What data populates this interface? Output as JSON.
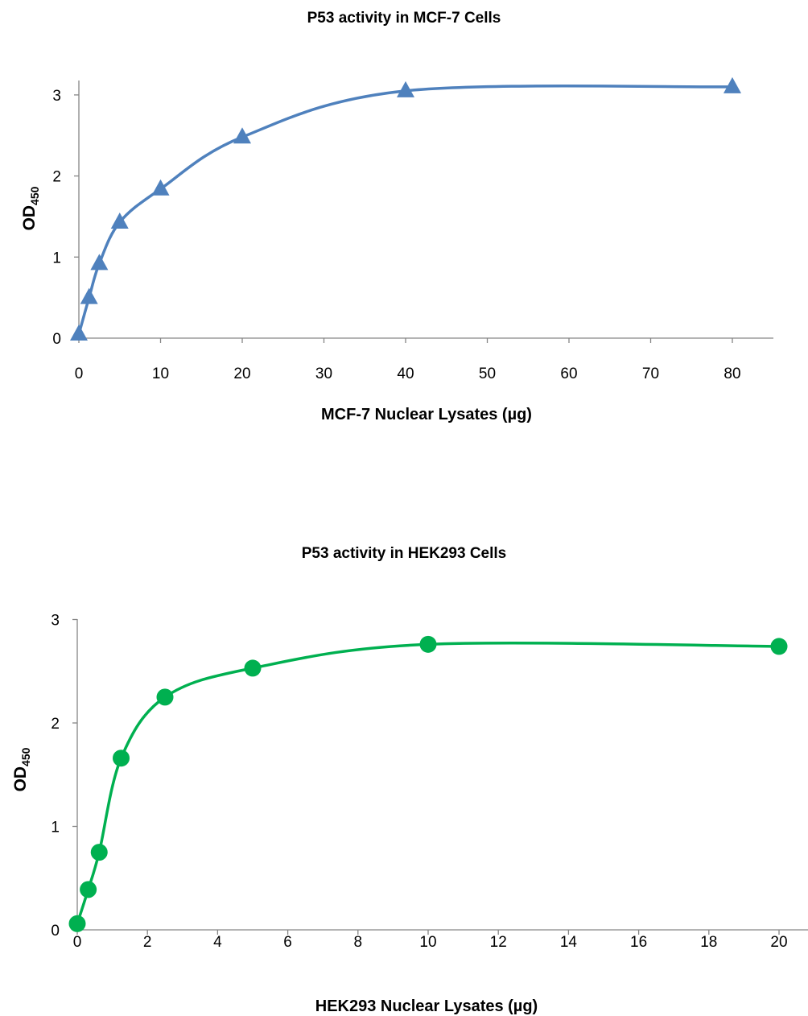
{
  "chart_data": [
    {
      "type": "line",
      "title": "P53 activity in MCF-7 Cells",
      "xlabel": "MCF-7 Nuclear Lysates (µg)",
      "ylabel": "OD",
      "ylabel_subscript": "450",
      "x_ticks": [
        "0",
        "10",
        "20",
        "30",
        "40",
        "50",
        "60",
        "70",
        "80"
      ],
      "y_ticks": [
        "0",
        "1",
        "2",
        "3"
      ],
      "ylim": [
        0,
        3
      ],
      "series": [
        {
          "marker": "triangle",
          "color": "#4F81BD",
          "x": [
            0,
            1.25,
            2.5,
            5,
            10,
            20,
            40,
            80
          ],
          "y": [
            0.05,
            0.5,
            0.92,
            1.43,
            1.84,
            2.48,
            3.05,
            3.1
          ]
        }
      ]
    },
    {
      "type": "line",
      "title": "P53 activity in HEK293 Cells",
      "xlabel": "HEK293 Nuclear Lysates (µg)",
      "ylabel": "OD",
      "ylabel_subscript": "450",
      "x_ticks": [
        "0",
        "2",
        "4",
        "6",
        "8",
        "10",
        "12",
        "14",
        "16",
        "18",
        "20"
      ],
      "y_ticks": [
        "0",
        "1",
        "2",
        "3"
      ],
      "ylim": [
        0,
        3
      ],
      "series": [
        {
          "marker": "circle",
          "color": "#00B050",
          "x": [
            0,
            0.3125,
            0.625,
            1.25,
            2.5,
            5,
            10,
            20
          ],
          "y": [
            0.06,
            0.39,
            0.75,
            1.66,
            2.25,
            2.53,
            2.76,
            2.74
          ]
        }
      ]
    }
  ]
}
